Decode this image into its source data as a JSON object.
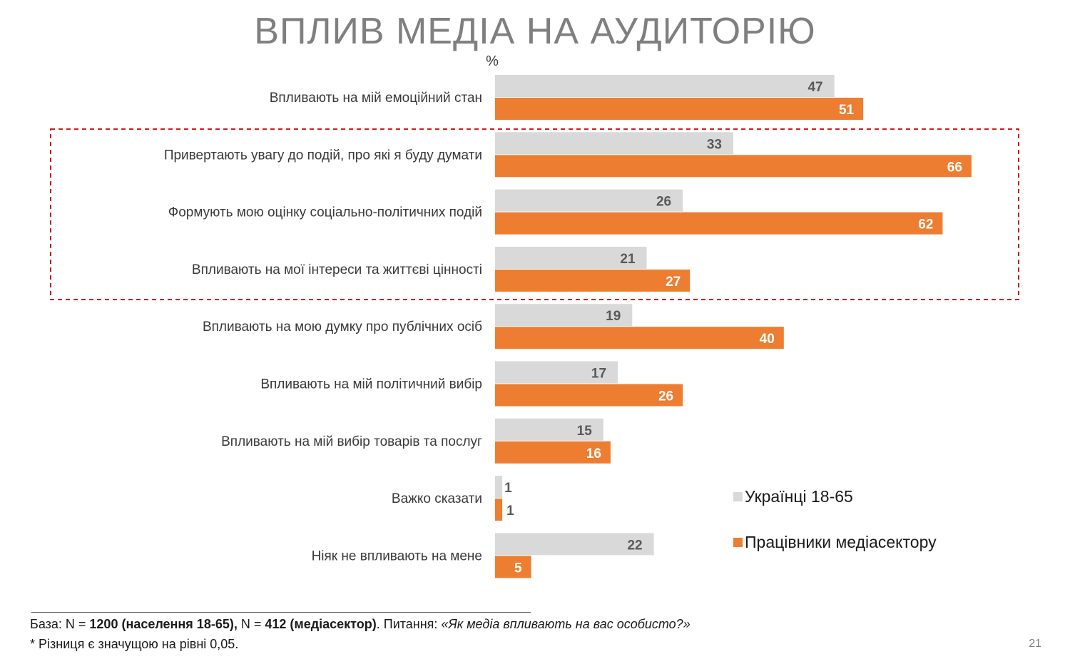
{
  "title": "ВПЛИВ МЕДІА НА АУДИТОРІЮ",
  "chart_data": {
    "type": "bar",
    "orientation": "horizontal",
    "unit_label": "%",
    "categories": [
      "Впливають на мій емоційний стан",
      "Привертають увагу до подій, про які я буду думати",
      "Формують мою оцінку соціально-політичних подій",
      "Впливають на мої інтереси та життєві цінності",
      "Впливають на мою думку про публічних осіб",
      "Впливають на мій політичний вибір",
      "Впливають на мій вибір товарів та послуг",
      "Важко сказати",
      "Ніяк не впливають на мене"
    ],
    "series": [
      {
        "name": "Українці 18-65",
        "color": "#d9d9d9",
        "values": [
          47,
          33,
          26,
          21,
          19,
          17,
          15,
          1,
          22
        ]
      },
      {
        "name": "Працівники медіасектору",
        "color": "#ed7d31",
        "values": [
          51,
          66,
          62,
          27,
          40,
          26,
          16,
          1,
          5
        ]
      }
    ],
    "xlim": [
      0,
      100
    ],
    "grid": false,
    "legend_position": "bottom-right",
    "highlight_box": {
      "categories": [
        1,
        2,
        3
      ],
      "style": "dashed",
      "color": "#c00000"
    }
  },
  "footer": {
    "base_prefix": "База: N = ",
    "base_n1": "1200 (населення 18-65),",
    "base_mid": " N = ",
    "base_n2": "412 (медіасектор)",
    "question_prefix": ". Питання: ",
    "question": "«Як медіа впливають на вас особисто?»",
    "note": "* Різниця є значущою на рівні 0,05."
  },
  "page_number": "21"
}
